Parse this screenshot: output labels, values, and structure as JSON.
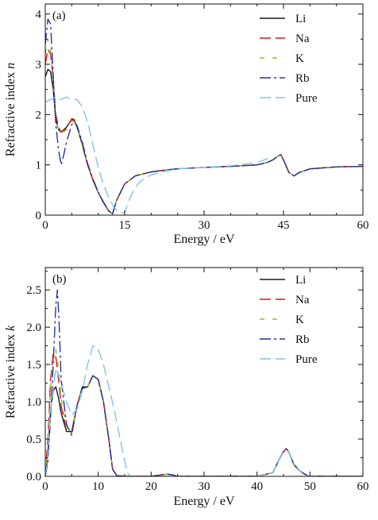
{
  "chart_data": [
    {
      "type": "line",
      "panel_tag": "(a)",
      "xlabel": "Energy / eV",
      "ylabel": "Refractive index n",
      "xlim": [
        0,
        60
      ],
      "ylim": [
        0,
        4.2
      ],
      "xticks": [
        0,
        15,
        30,
        45,
        60
      ],
      "xtick_labels": [
        "0",
        "15",
        "30",
        "45",
        "60"
      ],
      "yticks": [
        0,
        1,
        2,
        3,
        4
      ],
      "ytick_labels": [
        "0",
        "1",
        "2",
        "3",
        "4"
      ],
      "grid": false,
      "legend_position": "top-right",
      "series": [
        {
          "name": "Li",
          "color": "#1a1a1a",
          "dash": "solid",
          "x": [
            0,
            0.5,
            1,
            1.5,
            2,
            2.5,
            3,
            4,
            5,
            5.5,
            6,
            7,
            8,
            9,
            10,
            11,
            12,
            12.7,
            13.5,
            15,
            17,
            20,
            23,
            25,
            30,
            35,
            40,
            42,
            43,
            44,
            44.5,
            45,
            46,
            47,
            48,
            50,
            55,
            60
          ],
          "y": [
            2.75,
            2.9,
            2.85,
            2.5,
            1.9,
            1.7,
            1.65,
            1.75,
            1.9,
            1.88,
            1.75,
            1.4,
            1.0,
            0.7,
            0.45,
            0.25,
            0.08,
            0.03,
            0.3,
            0.62,
            0.78,
            0.86,
            0.9,
            0.92,
            0.95,
            0.97,
            1.0,
            1.05,
            1.1,
            1.18,
            1.2,
            1.1,
            0.85,
            0.78,
            0.85,
            0.92,
            0.96,
            0.97
          ]
        },
        {
          "name": "Na",
          "color": "#d7191c",
          "dash": "long-dash",
          "x": [
            0,
            0.5,
            1,
            1.5,
            2,
            2.5,
            3,
            4,
            5,
            5.5,
            6,
            7,
            8,
            9,
            10,
            11,
            12,
            12.7,
            13.5,
            15,
            17,
            20,
            23,
            25,
            30,
            35,
            40,
            42,
            43,
            44,
            44.5,
            45,
            46,
            47,
            48,
            50,
            55,
            60
          ],
          "y": [
            3.0,
            3.3,
            3.2,
            2.7,
            2.0,
            1.75,
            1.65,
            1.72,
            1.92,
            1.9,
            1.78,
            1.4,
            1.0,
            0.7,
            0.45,
            0.25,
            0.08,
            0.02,
            0.3,
            0.62,
            0.78,
            0.86,
            0.9,
            0.92,
            0.95,
            0.97,
            1.0,
            1.05,
            1.1,
            1.18,
            1.2,
            1.1,
            0.85,
            0.78,
            0.85,
            0.92,
            0.96,
            0.97
          ]
        },
        {
          "name": "K",
          "color": "#9bbb1e",
          "dash": "dash",
          "x": [
            0,
            0.5,
            1,
            1.5,
            2,
            2.5,
            3,
            4,
            5,
            5.5,
            6,
            7,
            8,
            9,
            10,
            11,
            12,
            12.7,
            13.5,
            15,
            17,
            20,
            23,
            25,
            30,
            35,
            40,
            42,
            43,
            44,
            44.5,
            45,
            46,
            47,
            48,
            50,
            55,
            60
          ],
          "y": [
            3.2,
            3.5,
            3.3,
            2.6,
            1.9,
            1.7,
            1.62,
            1.7,
            1.85,
            1.86,
            1.75,
            1.42,
            1.02,
            0.72,
            0.46,
            0.26,
            0.09,
            0.03,
            0.3,
            0.62,
            0.78,
            0.86,
            0.9,
            0.92,
            0.95,
            0.97,
            1.0,
            1.05,
            1.1,
            1.18,
            1.2,
            1.1,
            0.85,
            0.78,
            0.85,
            0.92,
            0.96,
            0.97
          ]
        },
        {
          "name": "Rb",
          "color": "#23379c",
          "dash": "long-dash-dot",
          "x": [
            0,
            0.5,
            1,
            1.5,
            2,
            2.5,
            3,
            3.5,
            4,
            5,
            5.5,
            6,
            7,
            8,
            9,
            10,
            11,
            12,
            12.7,
            13.5,
            15,
            17,
            20,
            23,
            25,
            30,
            35,
            40,
            42,
            43,
            44,
            44.5,
            45,
            46,
            47,
            48,
            50,
            55,
            60
          ],
          "y": [
            3.4,
            3.9,
            3.8,
            2.8,
            1.8,
            1.3,
            1.0,
            1.2,
            1.45,
            1.8,
            1.85,
            1.78,
            1.45,
            1.03,
            0.72,
            0.46,
            0.26,
            0.08,
            0.03,
            0.3,
            0.62,
            0.78,
            0.86,
            0.9,
            0.92,
            0.95,
            0.97,
            1.0,
            1.05,
            1.1,
            1.18,
            1.2,
            1.1,
            0.85,
            0.78,
            0.85,
            0.92,
            0.96,
            0.97
          ]
        },
        {
          "name": "Pure",
          "color": "#7fc4e8",
          "dash": "long-dash",
          "x": [
            0,
            1,
            2,
            3,
            4,
            5,
            6,
            7,
            8,
            9,
            10,
            11,
            12,
            13,
            14,
            15,
            16,
            17,
            18,
            20,
            23,
            25,
            30,
            35,
            40,
            42,
            43
          ],
          "y": [
            2.25,
            2.3,
            2.35,
            2.3,
            2.35,
            2.3,
            2.3,
            2.15,
            1.85,
            1.4,
            0.95,
            0.6,
            0.35,
            0.15,
            0.05,
            0.05,
            0.35,
            0.55,
            0.68,
            0.8,
            0.88,
            0.92,
            0.95,
            0.98,
            1.05,
            1.12,
            1.15
          ]
        }
      ]
    },
    {
      "type": "line",
      "panel_tag": "(b)",
      "xlabel": "Energy / eV",
      "ylabel": "Refractive index k",
      "xlim": [
        0,
        60
      ],
      "ylim": [
        0,
        2.8
      ],
      "xticks": [
        0,
        10,
        20,
        30,
        40,
        50,
        60
      ],
      "xtick_labels": [
        "0",
        "10",
        "20",
        "30",
        "40",
        "50",
        "60"
      ],
      "yticks": [
        0,
        0.5,
        1.0,
        1.5,
        2.0,
        2.5
      ],
      "ytick_labels": [
        "0.0",
        "0.5",
        "1.0",
        "1.5",
        "2.0",
        "2.5"
      ],
      "grid": false,
      "legend_position": "top-right",
      "series": [
        {
          "name": "Li",
          "color": "#1a1a1a",
          "dash": "solid",
          "x": [
            0,
            0.5,
            1,
            1.5,
            2,
            2.5,
            3,
            4,
            5,
            6,
            7,
            8,
            9,
            10,
            11,
            12,
            12.7,
            13.5,
            15,
            20,
            22,
            23,
            24,
            25,
            30,
            40,
            43,
            44,
            45,
            45.5,
            46,
            47,
            48,
            49,
            50,
            55,
            60
          ],
          "y": [
            0,
            0.3,
            0.9,
            1.15,
            1.2,
            1.05,
            0.85,
            0.6,
            0.6,
            0.95,
            1.2,
            1.2,
            1.35,
            1.3,
            1.0,
            0.5,
            0.1,
            0.01,
            0,
            0,
            0.02,
            0.03,
            0.02,
            0,
            0,
            0,
            0.05,
            0.2,
            0.33,
            0.37,
            0.33,
            0.15,
            0.08,
            0.03,
            0,
            0,
            0
          ]
        },
        {
          "name": "Na",
          "color": "#d7191c",
          "dash": "long-dash",
          "x": [
            0,
            0.5,
            1,
            1.5,
            2,
            2.5,
            3,
            4,
            5,
            6,
            7,
            8,
            9,
            10,
            11,
            12,
            12.7,
            13.5,
            15,
            20,
            22,
            23,
            24,
            25,
            30,
            40,
            43,
            44,
            45,
            45.5,
            46,
            47,
            48,
            49,
            50,
            55,
            60
          ],
          "y": [
            0,
            0.5,
            1.3,
            1.65,
            1.6,
            1.3,
            0.95,
            0.62,
            0.58,
            0.95,
            1.18,
            1.2,
            1.35,
            1.3,
            1.0,
            0.5,
            0.1,
            0.01,
            0,
            0,
            0.02,
            0.03,
            0.02,
            0,
            0,
            0,
            0.05,
            0.2,
            0.33,
            0.37,
            0.33,
            0.15,
            0.08,
            0.03,
            0,
            0,
            0
          ]
        },
        {
          "name": "K",
          "color": "#9bbb1e",
          "dash": "dash",
          "x": [
            0,
            0.5,
            1,
            1.5,
            2,
            2.5,
            3,
            4,
            5,
            6,
            7,
            8,
            9,
            10,
            11,
            12,
            12.7,
            13.5,
            15,
            20,
            22,
            23,
            24,
            25,
            30,
            40,
            43,
            44,
            45,
            45.5,
            46,
            47,
            48,
            49,
            50,
            55,
            60
          ],
          "y": [
            0,
            0.4,
            1.2,
            1.55,
            1.7,
            1.45,
            1.05,
            0.65,
            0.56,
            0.95,
            1.18,
            1.2,
            1.35,
            1.3,
            1.0,
            0.5,
            0.1,
            0.01,
            0,
            0,
            0.02,
            0.03,
            0.02,
            0,
            0,
            0,
            0.05,
            0.2,
            0.33,
            0.37,
            0.33,
            0.15,
            0.08,
            0.03,
            0,
            0,
            0
          ]
        },
        {
          "name": "Rb",
          "color": "#23379c",
          "dash": "long-dash-dot",
          "x": [
            0,
            0.5,
            1,
            1.5,
            2,
            2.3,
            2.6,
            3,
            4,
            5,
            6,
            7,
            8,
            9,
            10,
            11,
            12,
            12.7,
            13.5,
            15,
            20,
            22,
            23,
            24,
            25,
            30,
            40,
            43,
            44,
            45,
            45.5,
            46,
            47,
            48,
            49,
            50,
            55,
            60
          ],
          "y": [
            0,
            0.2,
            0.8,
            1.5,
            2.3,
            2.5,
            2.1,
            1.3,
            0.7,
            0.55,
            0.95,
            1.18,
            1.2,
            1.35,
            1.3,
            1.0,
            0.5,
            0.1,
            0.01,
            0,
            0,
            0.02,
            0.03,
            0.02,
            0,
            0,
            0,
            0.05,
            0.2,
            0.33,
            0.37,
            0.33,
            0.15,
            0.08,
            0.03,
            0,
            0,
            0
          ]
        },
        {
          "name": "Pure",
          "color": "#7fc4e8",
          "dash": "long-dash",
          "x": [
            0,
            0.5,
            1,
            2,
            3,
            4,
            5,
            6,
            7,
            8,
            9,
            10,
            11,
            12,
            13,
            14,
            15,
            15.5,
            16,
            20,
            40,
            43,
            44,
            45,
            45.5,
            46,
            47,
            48,
            50,
            60
          ],
          "y": [
            0,
            0.3,
            0.9,
            1.45,
            1.25,
            1.0,
            0.82,
            0.9,
            1.15,
            1.5,
            1.75,
            1.7,
            1.5,
            1.2,
            0.9,
            0.55,
            0.2,
            0.05,
            0,
            0,
            0,
            0.05,
            0.2,
            0.32,
            0.35,
            0.32,
            0.18,
            0.08,
            0,
            0
          ]
        }
      ]
    }
  ]
}
